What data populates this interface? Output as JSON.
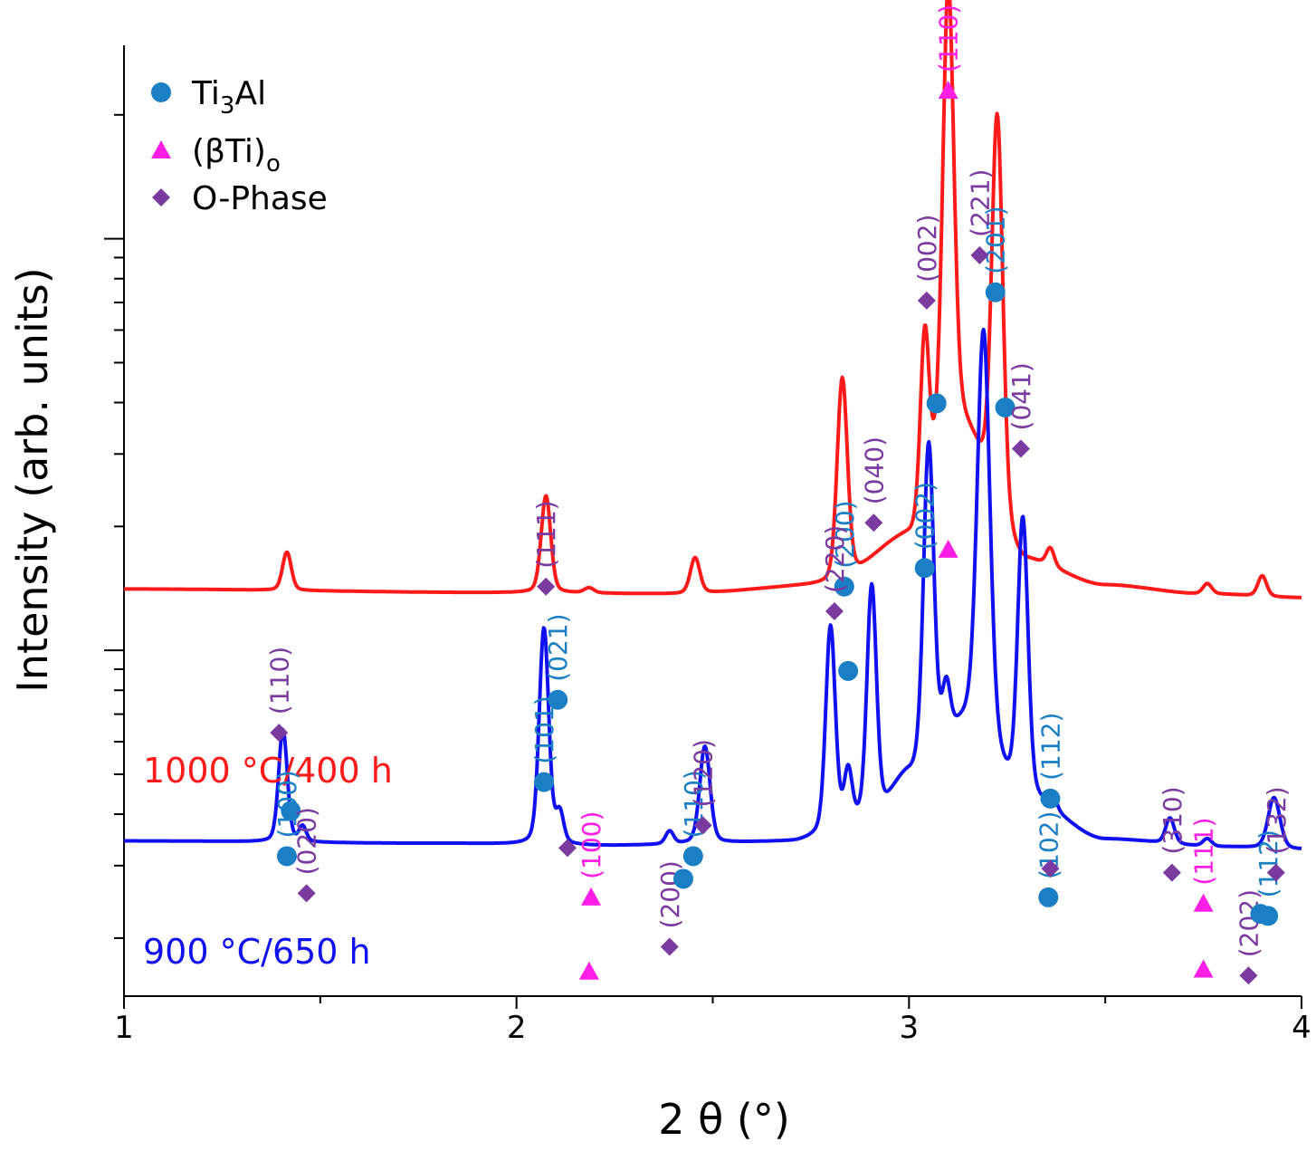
{
  "chart_data": {
    "type": "line",
    "xlabel": "2 θ (°)",
    "ylabel": "Intensity (arb. units)",
    "xlim": [
      1,
      4
    ],
    "x_ticks": [
      "1",
      "2",
      "3",
      "4"
    ],
    "y_scale": "log",
    "y_tick_labels": "none",
    "grid": false,
    "legend": {
      "position": "top-left",
      "entries": [
        {
          "marker": "circle",
          "color": "#1a7fc4",
          "text": "Ti",
          "sub": "3",
          "after": "Al"
        },
        {
          "marker": "triangle",
          "color": "#ff1ee6",
          "text": "(βTi)",
          "sub": "o",
          "after": ""
        },
        {
          "marker": "diamond",
          "color": "#7a3aa0",
          "text": "O-Phase",
          "sub": "",
          "after": ""
        }
      ]
    },
    "series": [
      {
        "name": "1000 °C/400 h",
        "color": "#ff1a1a",
        "baseline": [
          [
            1.0,
            0.045
          ],
          [
            2.0,
            0.03
          ],
          [
            2.4,
            0.025
          ],
          [
            2.8,
            0.06
          ],
          [
            3.0,
            0.25
          ],
          [
            3.12,
            0.7
          ],
          [
            3.3,
            0.15
          ],
          [
            3.5,
            0.06
          ],
          [
            3.75,
            0.025
          ],
          [
            4.0,
            0.01
          ]
        ],
        "peaks": [
          {
            "x": 1.415,
            "h": 0.15,
            "w": 0.011
          },
          {
            "x": 2.075,
            "h": 0.38,
            "w": 0.012
          },
          {
            "x": 2.185,
            "h": 0.02,
            "w": 0.012
          },
          {
            "x": 2.455,
            "h": 0.14,
            "w": 0.012
          },
          {
            "x": 2.83,
            "h": 0.8,
            "w": 0.013
          },
          {
            "x": 3.04,
            "h": 0.68,
            "w": 0.011
          },
          {
            "x": 3.1,
            "h": 1.75,
            "w": 0.014
          },
          {
            "x": 3.225,
            "h": 1.55,
            "w": 0.014
          },
          {
            "x": 3.36,
            "h": 0.07,
            "w": 0.01
          },
          {
            "x": 3.76,
            "h": 0.04,
            "w": 0.011
          },
          {
            "x": 3.9,
            "h": 0.08,
            "w": 0.011
          }
        ],
        "offset": 0.185
      },
      {
        "name": "900 °C/650 h",
        "color": "#1010f0",
        "baseline": [
          [
            1.0,
            0.045
          ],
          [
            1.8,
            0.035
          ],
          [
            2.2,
            0.025
          ],
          [
            2.7,
            0.04
          ],
          [
            2.9,
            0.12
          ],
          [
            3.0,
            0.3
          ],
          [
            3.15,
            0.5
          ],
          [
            3.3,
            0.2
          ],
          [
            3.5,
            0.05
          ],
          [
            3.8,
            0.02
          ],
          [
            4.0,
            0.01
          ]
        ],
        "peaks": [
          {
            "x": 1.405,
            "h": 0.44,
            "w": 0.011
          },
          {
            "x": 1.455,
            "h": 0.06,
            "w": 0.009
          },
          {
            "x": 2.07,
            "h": 0.85,
            "w": 0.012
          },
          {
            "x": 2.11,
            "h": 0.12,
            "w": 0.01
          },
          {
            "x": 2.39,
            "h": 0.05,
            "w": 0.01
          },
          {
            "x": 2.48,
            "h": 0.38,
            "w": 0.013
          },
          {
            "x": 2.8,
            "h": 0.8,
            "w": 0.012
          },
          {
            "x": 2.845,
            "h": 0.2,
            "w": 0.01
          },
          {
            "x": 2.905,
            "h": 0.92,
            "w": 0.012
          },
          {
            "x": 3.05,
            "h": 1.25,
            "w": 0.013
          },
          {
            "x": 3.095,
            "h": 0.2,
            "w": 0.01
          },
          {
            "x": 3.19,
            "h": 1.6,
            "w": 0.016
          },
          {
            "x": 3.29,
            "h": 1.1,
            "w": 0.013
          },
          {
            "x": 3.365,
            "h": 0.06,
            "w": 0.01
          },
          {
            "x": 3.665,
            "h": 0.1,
            "w": 0.011
          },
          {
            "x": 3.76,
            "h": 0.03,
            "w": 0.011
          },
          {
            "x": 3.93,
            "h": 0.2,
            "w": 0.015
          }
        ],
        "offset": 0.0
      }
    ],
    "sample_labels": [
      {
        "text": "1000 °C/400 h",
        "color": "#ff1a1a"
      },
      {
        "text": "900 °C/650 h",
        "color": "#1010f0"
      }
    ],
    "annotations": [
      {
        "x": 1.415,
        "y": 0.34,
        "marker": "circle",
        "color": "#1a7fc4",
        "label": "(100)"
      },
      {
        "x": 2.07,
        "y": 0.52,
        "marker": "circle",
        "color": "#1a7fc4",
        "label": "(101)"
      },
      {
        "x": 2.19,
        "y": 0.24,
        "marker": "triangle",
        "color": "#ff1ee6",
        "label": "(100)"
      },
      {
        "x": 2.45,
        "y": 0.34,
        "marker": "circle",
        "color": "#1a7fc4",
        "label": "(110)"
      },
      {
        "x": 2.835,
        "y": 0.995,
        "marker": "circle",
        "color": "#1a7fc4",
        "label": "(200)"
      },
      {
        "x": 3.04,
        "y": 1.04,
        "marker": "circle",
        "color": "#1a7fc4",
        "label": "(002)"
      },
      {
        "x": 3.1,
        "y": 2.2,
        "marker": "triangle",
        "color": "#ff1ee6",
        "label": "(110)"
      },
      {
        "x": 3.22,
        "y": 1.71,
        "marker": "circle",
        "color": "#1a7fc4",
        "label": "(201)"
      },
      {
        "x": 3.355,
        "y": 0.24,
        "marker": "circle",
        "color": "#1a7fc4",
        "label": "(102)"
      },
      {
        "x": 3.75,
        "y": 0.225,
        "marker": "triangle",
        "color": "#ff1ee6",
        "label": "(111)"
      },
      {
        "x": 3.915,
        "y": 0.195,
        "marker": "circle",
        "color": "#1a7fc4",
        "label": "(112)"
      },
      {
        "x": 1.395,
        "y": 0.64,
        "marker": "diamond",
        "color": "#7a3aa0",
        "label": "(110)"
      },
      {
        "x": 1.425,
        "y": 0.45,
        "marker": "circle",
        "color": "#1a7fc4",
        "label": ""
      },
      {
        "x": 1.465,
        "y": 0.25,
        "marker": "diamond",
        "color": "#7a3aa0",
        "label": "(020)"
      },
      {
        "x": 2.075,
        "y": 0.995,
        "marker": "diamond",
        "color": "#7a3aa0",
        "label": "(111)"
      },
      {
        "x": 2.105,
        "y": 0.72,
        "marker": "circle",
        "color": "#1a7fc4",
        "label": "(021)"
      },
      {
        "x": 2.13,
        "y": 0.36,
        "marker": "diamond",
        "color": "#7a3aa0",
        "label": ""
      },
      {
        "x": 2.185,
        "y": 0.06,
        "marker": "triangle",
        "color": "#ff1ee6",
        "label": ""
      },
      {
        "x": 2.39,
        "y": 0.12,
        "marker": "diamond",
        "color": "#7a3aa0",
        "label": "(200)"
      },
      {
        "x": 2.425,
        "y": 0.285,
        "marker": "circle",
        "color": "#1a7fc4",
        "label": ""
      },
      {
        "x": 2.475,
        "y": 0.415,
        "marker": "diamond",
        "color": "#7a3aa0",
        "label": "(120)"
      },
      {
        "x": 2.81,
        "y": 0.935,
        "marker": "diamond",
        "color": "#7a3aa0",
        "label": "(220)"
      },
      {
        "x": 2.845,
        "y": 0.79,
        "marker": "circle",
        "color": "#1a7fc4",
        "label": ""
      },
      {
        "x": 2.91,
        "y": 1.15,
        "marker": "diamond",
        "color": "#7a3aa0",
        "label": "(040)"
      },
      {
        "x": 3.045,
        "y": 1.69,
        "marker": "diamond",
        "color": "#7a3aa0",
        "label": "(002)"
      },
      {
        "x": 3.07,
        "y": 1.44,
        "marker": "circle",
        "color": "#1a7fc4",
        "label": ""
      },
      {
        "x": 3.1,
        "y": 1.085,
        "marker": "triangle",
        "color": "#ff1ee6",
        "label": ""
      },
      {
        "x": 3.18,
        "y": 1.8,
        "marker": "diamond",
        "color": "#7a3aa0",
        "label": "(221)"
      },
      {
        "x": 3.245,
        "y": 1.43,
        "marker": "circle",
        "color": "#1a7fc4",
        "label": ""
      },
      {
        "x": 3.285,
        "y": 1.33,
        "marker": "diamond",
        "color": "#7a3aa0",
        "label": "(041)"
      },
      {
        "x": 3.36,
        "y": 0.48,
        "marker": "circle",
        "color": "#1a7fc4",
        "label": "(112)"
      },
      {
        "x": 3.36,
        "y": 0.31,
        "marker": "diamond",
        "color": "#7a3aa0",
        "label": ""
      },
      {
        "x": 3.67,
        "y": 0.3,
        "marker": "diamond",
        "color": "#7a3aa0",
        "label": "(310)"
      },
      {
        "x": 3.75,
        "y": 0.065,
        "marker": "triangle",
        "color": "#ff1ee6",
        "label": ""
      },
      {
        "x": 3.865,
        "y": 0.05,
        "marker": "diamond",
        "color": "#7a3aa0",
        "label": "(202)"
      },
      {
        "x": 3.895,
        "y": 0.2,
        "marker": "circle",
        "color": "#1a7fc4",
        "label": ""
      },
      {
        "x": 3.935,
        "y": 0.3,
        "marker": "diamond",
        "color": "#7a3aa0",
        "label": "(132)"
      }
    ]
  }
}
